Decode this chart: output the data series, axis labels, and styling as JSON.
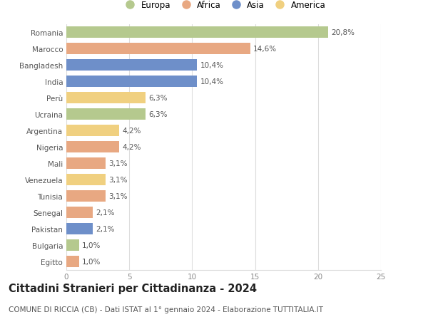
{
  "countries": [
    "Romania",
    "Marocco",
    "Bangladesh",
    "India",
    "Perù",
    "Ucraina",
    "Argentina",
    "Nigeria",
    "Mali",
    "Venezuela",
    "Tunisia",
    "Senegal",
    "Pakistan",
    "Bulgaria",
    "Egitto"
  ],
  "values": [
    20.8,
    14.6,
    10.4,
    10.4,
    6.3,
    6.3,
    4.2,
    4.2,
    3.1,
    3.1,
    3.1,
    2.1,
    2.1,
    1.0,
    1.0
  ],
  "labels": [
    "20,8%",
    "14,6%",
    "10,4%",
    "10,4%",
    "6,3%",
    "6,3%",
    "4,2%",
    "4,2%",
    "3,1%",
    "3,1%",
    "3,1%",
    "2,1%",
    "2,1%",
    "1,0%",
    "1,0%"
  ],
  "continents": [
    "Europa",
    "Africa",
    "Asia",
    "Asia",
    "America",
    "Europa",
    "America",
    "Africa",
    "Africa",
    "America",
    "Africa",
    "Africa",
    "Asia",
    "Europa",
    "Africa"
  ],
  "colors": {
    "Europa": "#b5c98e",
    "Africa": "#e8a882",
    "Asia": "#6e8fc9",
    "America": "#f0d080"
  },
  "legend_order": [
    "Europa",
    "Africa",
    "Asia",
    "America"
  ],
  "title": "Cittadini Stranieri per Cittadinanza - 2024",
  "subtitle": "COMUNE DI RICCIA (CB) - Dati ISTAT al 1° gennaio 2024 - Elaborazione TUTTITALIA.IT",
  "xlim": [
    0,
    25
  ],
  "xticks": [
    0,
    5,
    10,
    15,
    20,
    25
  ],
  "background_color": "#ffffff",
  "grid_color": "#dddddd",
  "bar_height": 0.72,
  "label_fontsize": 7.5,
  "tick_fontsize": 7.5,
  "title_fontsize": 10.5,
  "subtitle_fontsize": 7.5
}
